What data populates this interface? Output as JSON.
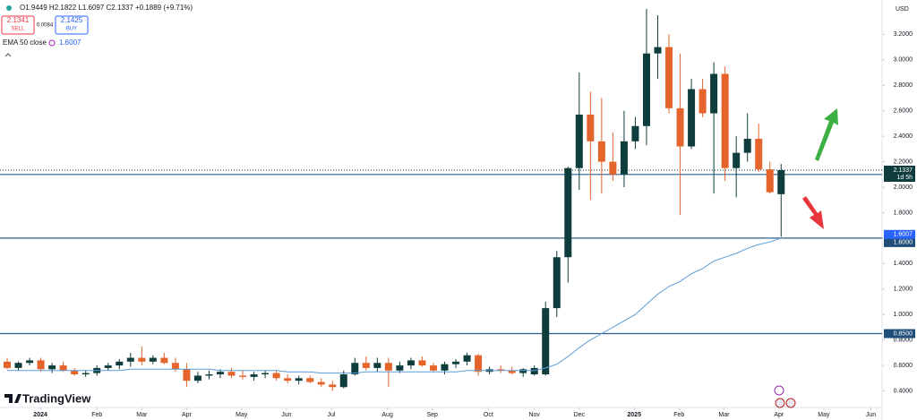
{
  "chart_data": {
    "type": "candlestick",
    "header": {
      "ohlc": "O1.9449 H2.1822 L1.6097 C2.1337 +0.1889 (+9.71%)",
      "sell": {
        "price": "2.1341",
        "label": "SELL"
      },
      "spread": "0.0084",
      "buy": {
        "price": "2.1425",
        "label": "BUY"
      },
      "indicator": {
        "name": "EMA 50 close",
        "value": "1.6007"
      },
      "currency": "USD",
      "logo": "TradingView"
    },
    "open": [
      0.63,
      0.58,
      0.62,
      0.64,
      0.57,
      0.6,
      0.56,
      0.53,
      0.54,
      0.58,
      0.6,
      0.63,
      0.66,
      0.63,
      0.66,
      0.62,
      0.57,
      0.48,
      0.52,
      0.53,
      0.55,
      0.52,
      0.51,
      0.53,
      0.54,
      0.5,
      0.48,
      0.5,
      0.47,
      0.45,
      0.43,
      0.53,
      0.62,
      0.58,
      0.62,
      0.56,
      0.6,
      0.64,
      0.6,
      0.56,
      0.61,
      0.63,
      0.68,
      0.55,
      0.57,
      0.56,
      0.54,
      0.53,
      0.53,
      1.05,
      1.45,
      2.15,
      2.57,
      2.36,
      2.2,
      2.1,
      2.36,
      2.48,
      3.05,
      3.1,
      2.62,
      2.32,
      2.77,
      2.58,
      2.89,
      2.15,
      2.27,
      2.38,
      2.14,
      1.9449
    ],
    "high": [
      0.66,
      0.63,
      0.66,
      0.66,
      0.62,
      0.63,
      0.58,
      0.56,
      0.6,
      0.62,
      0.65,
      0.7,
      0.75,
      0.68,
      0.7,
      0.66,
      0.62,
      0.55,
      0.56,
      0.57,
      0.58,
      0.56,
      0.55,
      0.56,
      0.56,
      0.53,
      0.52,
      0.52,
      0.5,
      0.48,
      0.56,
      0.66,
      0.67,
      0.66,
      0.66,
      0.63,
      0.66,
      0.67,
      0.62,
      0.63,
      0.65,
      0.7,
      0.69,
      0.59,
      0.6,
      0.59,
      0.58,
      0.6,
      1.1,
      1.5,
      2.16,
      2.9,
      2.75,
      2.7,
      2.43,
      2.6,
      2.55,
      3.4,
      3.35,
      3.2,
      3.05,
      2.85,
      2.85,
      2.98,
      2.95,
      2.4,
      2.58,
      2.5,
      2.2,
      2.1822
    ],
    "low": [
      0.57,
      0.56,
      0.6,
      0.55,
      0.54,
      0.55,
      0.52,
      0.51,
      0.52,
      0.56,
      0.57,
      0.59,
      0.6,
      0.61,
      0.61,
      0.55,
      0.43,
      0.46,
      0.49,
      0.5,
      0.5,
      0.49,
      0.48,
      0.5,
      0.48,
      0.46,
      0.45,
      0.46,
      0.43,
      0.4,
      0.42,
      0.52,
      0.56,
      0.55,
      0.43,
      0.54,
      0.57,
      0.59,
      0.55,
      0.53,
      0.58,
      0.6,
      0.52,
      0.53,
      0.54,
      0.53,
      0.51,
      0.52,
      0.52,
      0.98,
      1.25,
      1.98,
      1.9,
      1.95,
      2.05,
      2.0,
      2.3,
      2.33,
      2.85,
      2.58,
      1.78,
      2.3,
      2.55,
      1.95,
      2.05,
      1.92,
      2.2,
      2.12,
      1.95,
      1.6097
    ],
    "close": [
      0.58,
      0.62,
      0.64,
      0.57,
      0.6,
      0.56,
      0.53,
      0.54,
      0.58,
      0.6,
      0.63,
      0.66,
      0.63,
      0.66,
      0.62,
      0.57,
      0.48,
      0.52,
      0.53,
      0.55,
      0.52,
      0.51,
      0.53,
      0.54,
      0.5,
      0.48,
      0.5,
      0.47,
      0.45,
      0.43,
      0.53,
      0.62,
      0.58,
      0.62,
      0.56,
      0.6,
      0.64,
      0.6,
      0.56,
      0.61,
      0.63,
      0.68,
      0.55,
      0.57,
      0.56,
      0.54,
      0.57,
      0.58,
      1.05,
      1.45,
      2.15,
      2.57,
      2.36,
      2.2,
      2.1,
      2.36,
      2.48,
      3.05,
      3.1,
      2.62,
      2.32,
      2.77,
      2.58,
      2.89,
      2.15,
      2.27,
      2.38,
      2.14,
      1.96,
      2.1337
    ],
    "up_color": "#0f3d3e",
    "down_color": "#e4642c",
    "ema": {
      "name": "EMA 50 close",
      "color": "#5b9bd5",
      "values": [
        0.56,
        0.56,
        0.56,
        0.56,
        0.56,
        0.56,
        0.56,
        0.56,
        0.56,
        0.56,
        0.56,
        0.57,
        0.57,
        0.57,
        0.57,
        0.57,
        0.57,
        0.57,
        0.57,
        0.56,
        0.56,
        0.56,
        0.56,
        0.56,
        0.56,
        0.55,
        0.55,
        0.55,
        0.54,
        0.54,
        0.54,
        0.54,
        0.55,
        0.55,
        0.55,
        0.55,
        0.55,
        0.55,
        0.55,
        0.55,
        0.55,
        0.56,
        0.56,
        0.56,
        0.56,
        0.56,
        0.56,
        0.56,
        0.58,
        0.61,
        0.67,
        0.74,
        0.8,
        0.85,
        0.9,
        0.95,
        1.0,
        1.08,
        1.16,
        1.22,
        1.26,
        1.32,
        1.36,
        1.42,
        1.45,
        1.48,
        1.52,
        1.55,
        1.57,
        1.6007
      ],
      "last_label": {
        "value": 1.6007,
        "label": "1.6007"
      }
    },
    "levels": [
      {
        "value": 2.1,
        "label": "2.1000"
      },
      {
        "value": 1.6,
        "label": "1.6000"
      },
      {
        "value": 0.85,
        "label": "0.8500"
      }
    ],
    "last_price": {
      "value": 2.1337,
      "label": "2.1337",
      "countdown": "1d 5h"
    },
    "ylim": [
      0.27,
      3.47
    ],
    "yticks": [
      {
        "value": 0.4,
        "label": "0.4000"
      },
      {
        "value": 0.6,
        "label": "0.6000"
      },
      {
        "value": 0.8,
        "label": "0.8000"
      },
      {
        "value": 1.0,
        "label": "1.0000"
      },
      {
        "value": 1.2,
        "label": "1.2000"
      },
      {
        "value": 1.4,
        "label": "1.4000"
      },
      {
        "value": 1.6,
        "label": "1.6000"
      },
      {
        "value": 1.8,
        "label": "1.8000"
      },
      {
        "value": 2.0,
        "label": "2.0000"
      },
      {
        "value": 2.2,
        "label": "2.2000"
      },
      {
        "value": 2.4,
        "label": "2.4000"
      },
      {
        "value": 2.6,
        "label": "2.6000"
      },
      {
        "value": 2.8,
        "label": "2.8000"
      },
      {
        "value": 3.0,
        "label": "3.0000"
      },
      {
        "value": 3.2,
        "label": "3.2000"
      }
    ],
    "xlim": [
      -0.64,
      78
    ],
    "xticks": [
      {
        "value": 2.96,
        "label": "2024"
      },
      {
        "value": 8,
        "label": "Feb"
      },
      {
        "value": 12,
        "label": "Mar"
      },
      {
        "value": 16,
        "label": "Apr"
      },
      {
        "value": 20.9,
        "label": "May"
      },
      {
        "value": 24.9,
        "label": "Jun"
      },
      {
        "value": 28.9,
        "label": "Jul"
      },
      {
        "value": 33.9,
        "label": "Aug"
      },
      {
        "value": 37.9,
        "label": "Sep"
      },
      {
        "value": 42.9,
        "label": "Oct"
      },
      {
        "value": 47,
        "label": "Nov"
      },
      {
        "value": 51,
        "label": "Dec"
      },
      {
        "value": 55.9,
        "label": "2025"
      },
      {
        "value": 59.9,
        "label": "Feb"
      },
      {
        "value": 63.9,
        "label": "Mar"
      },
      {
        "value": 68.8,
        "label": "Apr"
      },
      {
        "value": 72.8,
        "label": "May"
      },
      {
        "value": 77,
        "label": "Jun"
      }
    ],
    "grid": false
  }
}
